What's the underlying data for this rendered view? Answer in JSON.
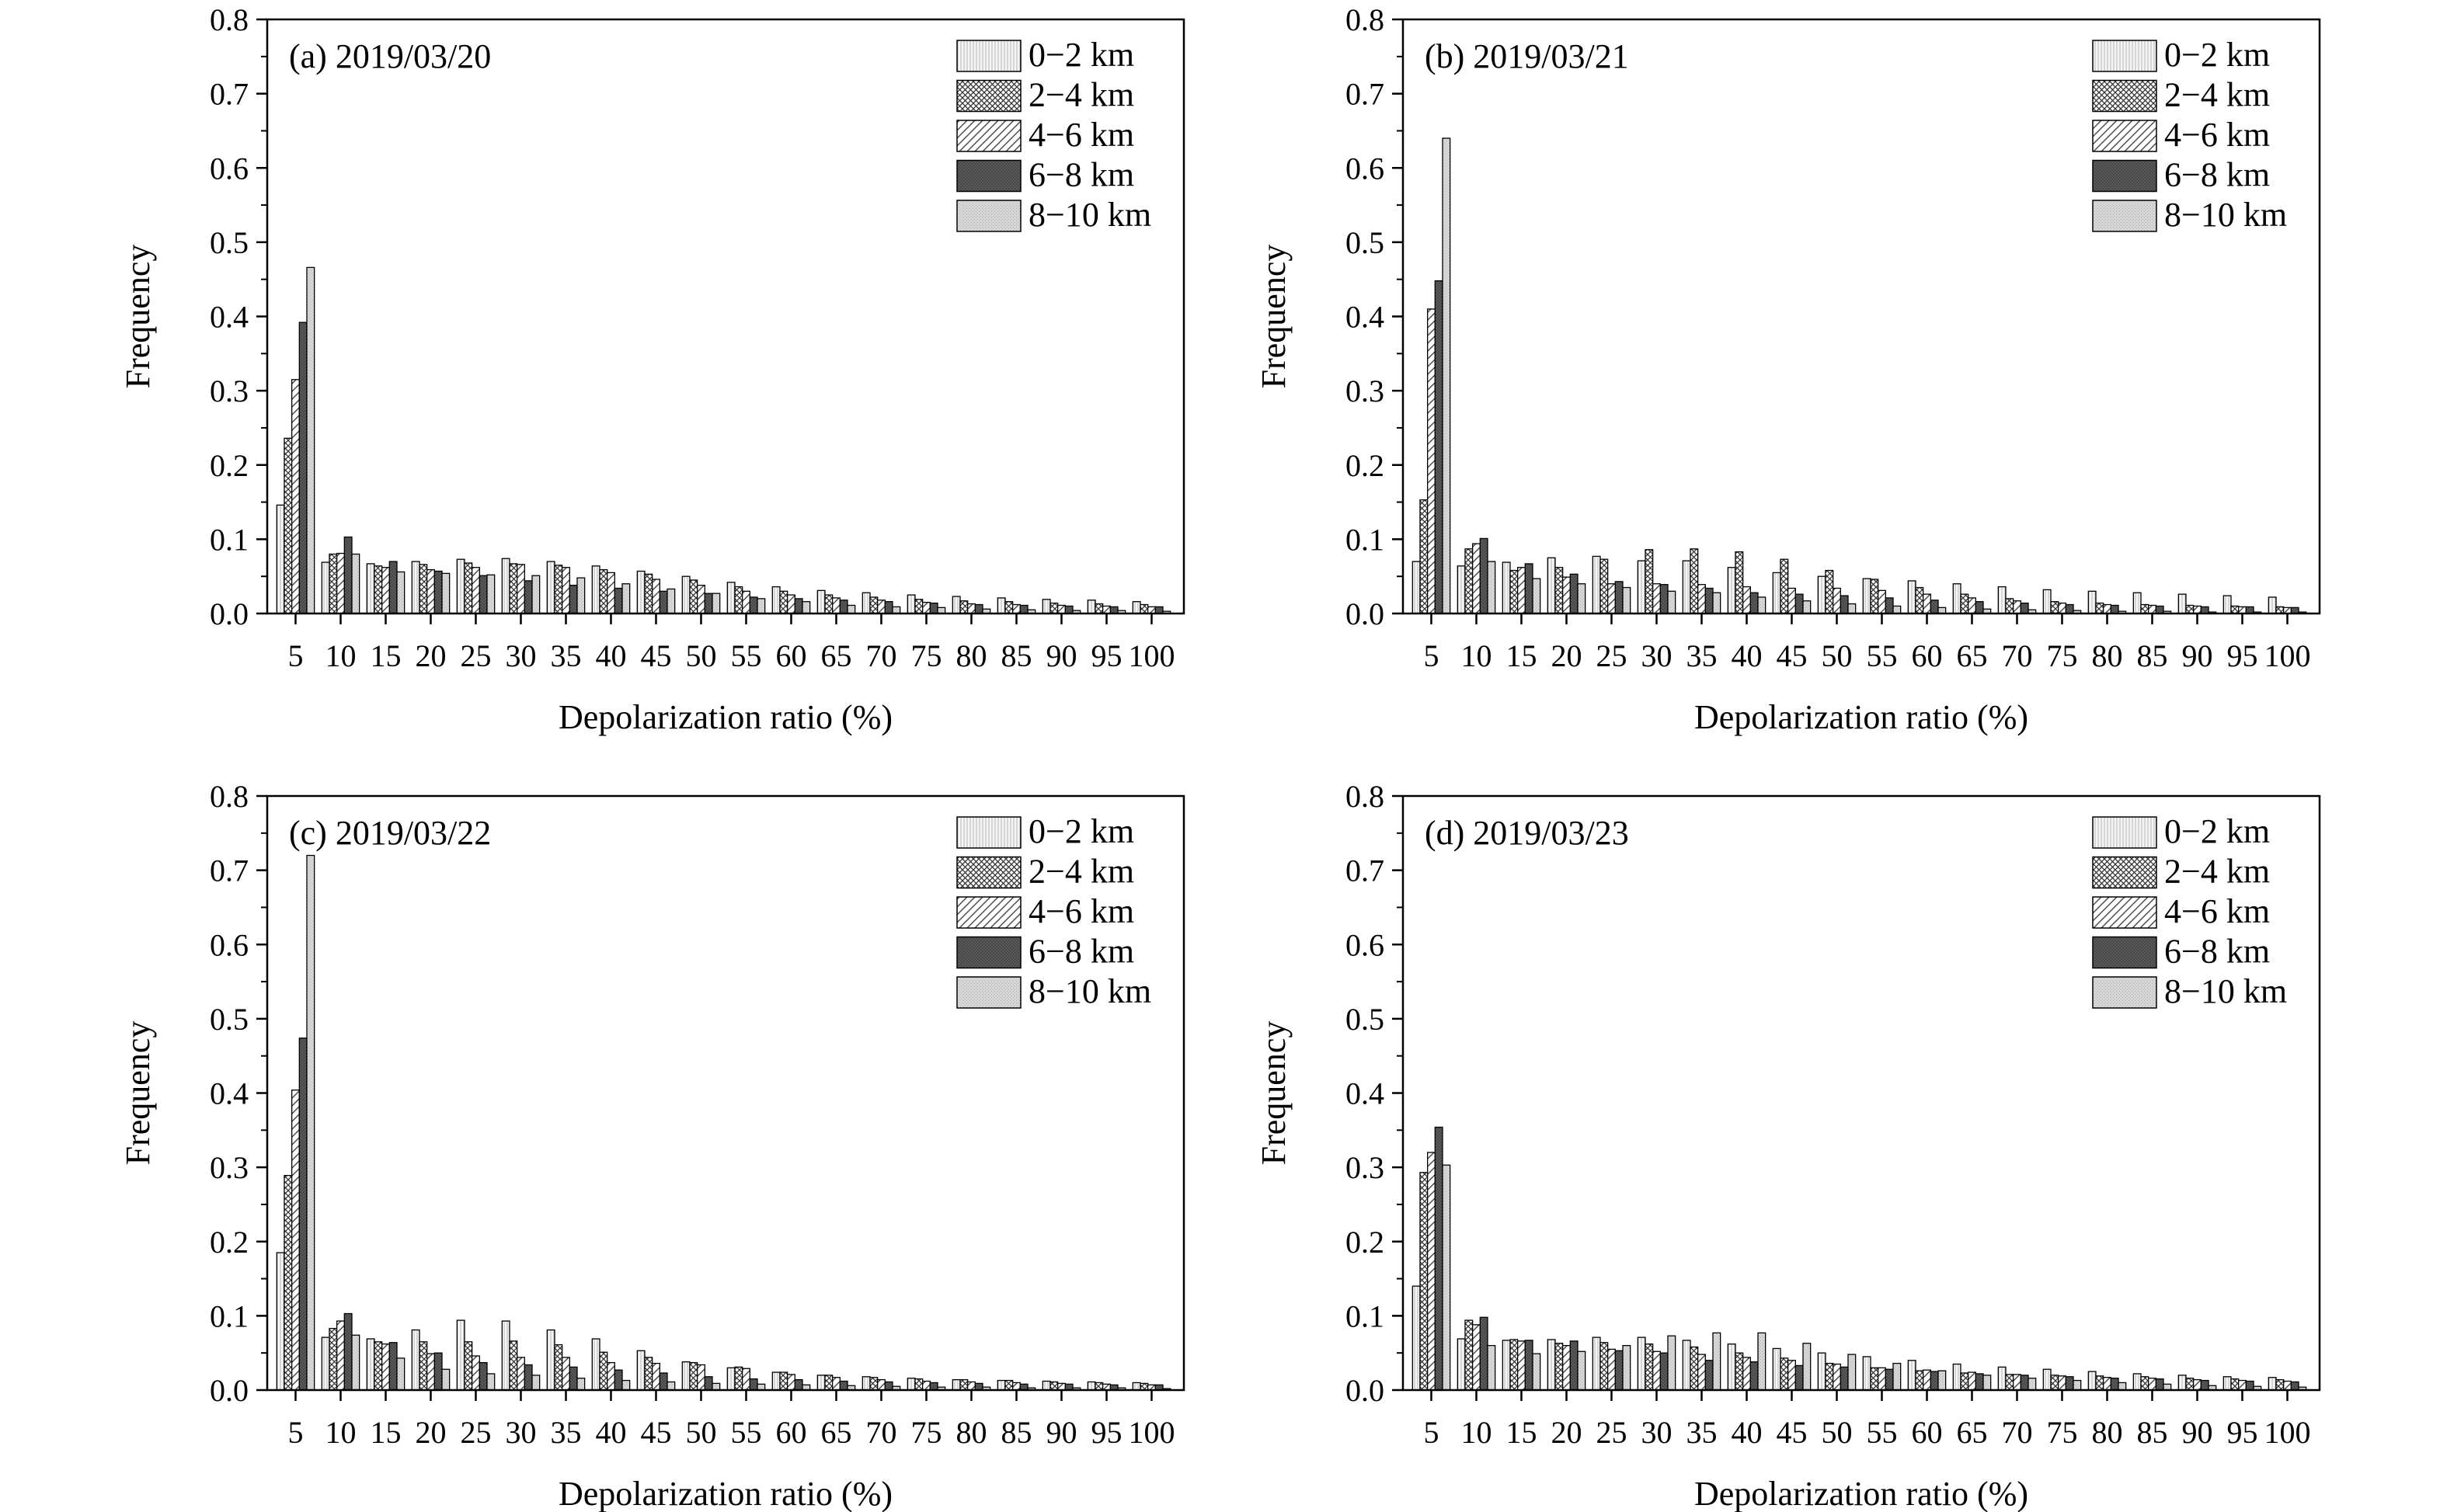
{
  "figure": {
    "xlabel": "Depolarization ratio (%)",
    "ylabel": "Frequency"
  },
  "legend": [
    {
      "label": "0−2 km",
      "pattern": "vlines",
      "color": "#f4f4f4"
    },
    {
      "label": "2−4 km",
      "pattern": "crosshatch",
      "color": "#ffffff"
    },
    {
      "label": "4−6 km",
      "pattern": "diag",
      "color": "#ffffff"
    },
    {
      "label": "6−8 km",
      "pattern": "dark",
      "color": "#575757"
    },
    {
      "label": "8−10 km",
      "pattern": "light",
      "color": "#d3d3d3"
    }
  ],
  "chart_data": [
    {
      "type": "bar",
      "panel_label": "(a) 2019/03/20",
      "xlabel": "Depolarization ratio (%)",
      "ylabel": "Frequency",
      "ylim": [
        0,
        0.8
      ],
      "yticks": [
        "0.0",
        "0.1",
        "0.2",
        "0.3",
        "0.4",
        "0.5",
        "0.6",
        "0.7",
        "0.8"
      ],
      "categories": [
        "5",
        "10",
        "15",
        "20",
        "25",
        "30",
        "35",
        "40",
        "45",
        "50",
        "55",
        "60",
        "65",
        "70",
        "75",
        "80",
        "85",
        "90",
        "95",
        "100"
      ],
      "series": [
        {
          "name": "0−2 km",
          "values": [
            0.146,
            0.069,
            0.067,
            0.07,
            0.073,
            0.074,
            0.07,
            0.064,
            0.057,
            0.05,
            0.042,
            0.036,
            0.031,
            0.028,
            0.025,
            0.023,
            0.021,
            0.019,
            0.018,
            0.016
          ]
        },
        {
          "name": "2−4 km",
          "values": [
            0.236,
            0.08,
            0.064,
            0.066,
            0.068,
            0.067,
            0.065,
            0.059,
            0.053,
            0.045,
            0.036,
            0.03,
            0.025,
            0.022,
            0.019,
            0.017,
            0.016,
            0.014,
            0.013,
            0.012
          ]
        },
        {
          "name": "4−6 km",
          "values": [
            0.315,
            0.081,
            0.062,
            0.059,
            0.062,
            0.066,
            0.062,
            0.055,
            0.046,
            0.038,
            0.03,
            0.025,
            0.021,
            0.018,
            0.015,
            0.013,
            0.012,
            0.011,
            0.01,
            0.009
          ]
        },
        {
          "name": "6−8 km",
          "values": [
            0.392,
            0.103,
            0.07,
            0.057,
            0.051,
            0.044,
            0.038,
            0.034,
            0.03,
            0.027,
            0.022,
            0.02,
            0.018,
            0.016,
            0.014,
            0.012,
            0.011,
            0.01,
            0.009,
            0.009
          ]
        },
        {
          "name": "8−10 km",
          "values": [
            0.466,
            0.08,
            0.056,
            0.054,
            0.052,
            0.051,
            0.048,
            0.04,
            0.033,
            0.027,
            0.02,
            0.016,
            0.011,
            0.009,
            0.008,
            0.006,
            0.005,
            0.004,
            0.004,
            0.003
          ]
        }
      ]
    },
    {
      "type": "bar",
      "panel_label": "(b) 2019/03/21",
      "xlabel": "Depolarization ratio (%)",
      "ylabel": "Frequency",
      "ylim": [
        0,
        0.8
      ],
      "yticks": [
        "0.0",
        "0.1",
        "0.2",
        "0.3",
        "0.4",
        "0.5",
        "0.6",
        "0.7",
        "0.8"
      ],
      "categories": [
        "5",
        "10",
        "15",
        "20",
        "25",
        "30",
        "35",
        "40",
        "45",
        "50",
        "55",
        "60",
        "65",
        "70",
        "75",
        "80",
        "85",
        "90",
        "95",
        "100"
      ],
      "series": [
        {
          "name": "0−2 km",
          "values": [
            0.07,
            0.064,
            0.069,
            0.075,
            0.077,
            0.071,
            0.071,
            0.062,
            0.055,
            0.05,
            0.047,
            0.044,
            0.04,
            0.036,
            0.032,
            0.03,
            0.028,
            0.026,
            0.024,
            0.022
          ]
        },
        {
          "name": "2−4 km",
          "values": [
            0.153,
            0.087,
            0.058,
            0.062,
            0.073,
            0.086,
            0.087,
            0.083,
            0.073,
            0.058,
            0.046,
            0.035,
            0.026,
            0.02,
            0.016,
            0.014,
            0.012,
            0.011,
            0.01,
            0.009
          ]
        },
        {
          "name": "4−6 km",
          "values": [
            0.41,
            0.094,
            0.062,
            0.049,
            0.04,
            0.04,
            0.039,
            0.036,
            0.034,
            0.034,
            0.031,
            0.026,
            0.021,
            0.017,
            0.014,
            0.012,
            0.011,
            0.01,
            0.009,
            0.008
          ]
        },
        {
          "name": "6−8 km",
          "values": [
            0.448,
            0.101,
            0.067,
            0.053,
            0.043,
            0.039,
            0.034,
            0.028,
            0.026,
            0.024,
            0.021,
            0.018,
            0.016,
            0.014,
            0.012,
            0.011,
            0.01,
            0.009,
            0.009,
            0.008
          ]
        },
        {
          "name": "8−10 km",
          "values": [
            0.64,
            0.07,
            0.047,
            0.04,
            0.035,
            0.03,
            0.028,
            0.022,
            0.017,
            0.013,
            0.01,
            0.008,
            0.006,
            0.005,
            0.004,
            0.003,
            0.003,
            0.002,
            0.002,
            0.002
          ]
        }
      ]
    },
    {
      "type": "bar",
      "panel_label": "(c) 2019/03/22",
      "xlabel": "Depolarization ratio (%)",
      "ylabel": "Frequency",
      "ylim": [
        0,
        0.8
      ],
      "yticks": [
        "0.0",
        "0.1",
        "0.2",
        "0.3",
        "0.4",
        "0.5",
        "0.6",
        "0.7",
        "0.8"
      ],
      "categories": [
        "5",
        "10",
        "15",
        "20",
        "25",
        "30",
        "35",
        "40",
        "45",
        "50",
        "55",
        "60",
        "65",
        "70",
        "75",
        "80",
        "85",
        "90",
        "95",
        "100"
      ],
      "series": [
        {
          "name": "0−2 km",
          "values": [
            0.185,
            0.071,
            0.069,
            0.081,
            0.094,
            0.093,
            0.081,
            0.069,
            0.053,
            0.038,
            0.03,
            0.024,
            0.02,
            0.018,
            0.016,
            0.014,
            0.013,
            0.012,
            0.011,
            0.01
          ]
        },
        {
          "name": "2−4 km",
          "values": [
            0.289,
            0.083,
            0.065,
            0.065,
            0.065,
            0.066,
            0.061,
            0.051,
            0.044,
            0.037,
            0.031,
            0.024,
            0.02,
            0.017,
            0.015,
            0.014,
            0.013,
            0.011,
            0.01,
            0.009
          ]
        },
        {
          "name": "4−6 km",
          "values": [
            0.404,
            0.093,
            0.062,
            0.049,
            0.046,
            0.044,
            0.044,
            0.037,
            0.036,
            0.034,
            0.029,
            0.021,
            0.017,
            0.014,
            0.012,
            0.011,
            0.01,
            0.009,
            0.008,
            0.007
          ]
        },
        {
          "name": "6−8 km",
          "values": [
            0.474,
            0.103,
            0.064,
            0.05,
            0.037,
            0.034,
            0.031,
            0.027,
            0.023,
            0.018,
            0.015,
            0.014,
            0.012,
            0.011,
            0.01,
            0.009,
            0.008,
            0.008,
            0.007,
            0.007
          ]
        },
        {
          "name": "8−10 km",
          "values": [
            0.72,
            0.074,
            0.043,
            0.028,
            0.022,
            0.02,
            0.016,
            0.013,
            0.011,
            0.009,
            0.008,
            0.007,
            0.006,
            0.005,
            0.004,
            0.004,
            0.003,
            0.003,
            0.003,
            0.002
          ]
        }
      ]
    },
    {
      "type": "bar",
      "panel_label": "(d) 2019/03/23",
      "xlabel": "Depolarization ratio (%)",
      "ylabel": "Frequency",
      "ylim": [
        0,
        0.8
      ],
      "yticks": [
        "0.0",
        "0.1",
        "0.2",
        "0.3",
        "0.4",
        "0.5",
        "0.6",
        "0.7",
        "0.8"
      ],
      "categories": [
        "5",
        "10",
        "15",
        "20",
        "25",
        "30",
        "35",
        "40",
        "45",
        "50",
        "55",
        "60",
        "65",
        "70",
        "75",
        "80",
        "85",
        "90",
        "95",
        "100"
      ],
      "series": [
        {
          "name": "0−2 km",
          "values": [
            0.14,
            0.069,
            0.067,
            0.068,
            0.071,
            0.071,
            0.067,
            0.062,
            0.056,
            0.05,
            0.045,
            0.04,
            0.035,
            0.031,
            0.028,
            0.025,
            0.022,
            0.02,
            0.018,
            0.017
          ]
        },
        {
          "name": "2−4 km",
          "values": [
            0.293,
            0.094,
            0.068,
            0.063,
            0.064,
            0.062,
            0.058,
            0.05,
            0.043,
            0.036,
            0.03,
            0.026,
            0.023,
            0.021,
            0.02,
            0.019,
            0.018,
            0.016,
            0.015,
            0.014
          ]
        },
        {
          "name": "4−6 km",
          "values": [
            0.32,
            0.088,
            0.066,
            0.06,
            0.055,
            0.052,
            0.048,
            0.044,
            0.04,
            0.035,
            0.03,
            0.027,
            0.024,
            0.021,
            0.019,
            0.017,
            0.016,
            0.014,
            0.013,
            0.012
          ]
        },
        {
          "name": "6−8 km",
          "values": [
            0.354,
            0.098,
            0.067,
            0.066,
            0.053,
            0.05,
            0.04,
            0.038,
            0.033,
            0.031,
            0.028,
            0.025,
            0.022,
            0.02,
            0.018,
            0.016,
            0.015,
            0.013,
            0.012,
            0.011
          ]
        },
        {
          "name": "8−10 km",
          "values": [
            0.303,
            0.06,
            0.049,
            0.052,
            0.06,
            0.073,
            0.077,
            0.077,
            0.063,
            0.048,
            0.036,
            0.026,
            0.02,
            0.016,
            0.013,
            0.01,
            0.008,
            0.006,
            0.005,
            0.004
          ]
        }
      ]
    }
  ]
}
